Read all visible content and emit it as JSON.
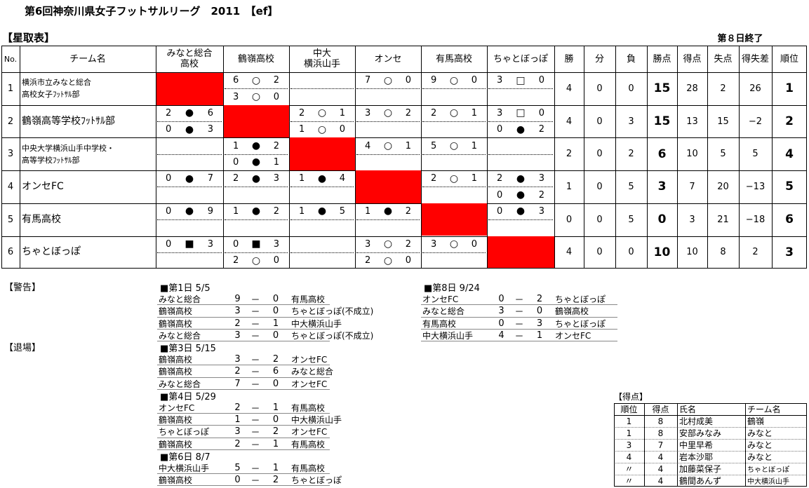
{
  "header": {
    "title": "第6回神奈川県女子フットサルリーグ　2011　【ef】",
    "section": "【星取表】",
    "status": "第８日終了"
  },
  "standings": {
    "columns": [
      "No.",
      "チーム名",
      "みなと総合\n高校",
      "鶴嶺高校",
      "中大\n横浜山手",
      "オンセ",
      "有馬高校",
      "ちゃとぼっぽ",
      "勝",
      "分",
      "負",
      "勝点",
      "得点",
      "失点",
      "得失差",
      "順位"
    ],
    "rows": [
      {
        "no": "1",
        "team": "横浜市立みなと総合\n高校女子ﾌｯﾄｻﾙ部",
        "results": [
          null,
          [
            [
              "6",
              "○",
              "2"
            ],
            [
              "3",
              "○",
              "0"
            ]
          ],
          [],
          [
            [
              "7",
              "○",
              "0"
            ]
          ],
          [
            [
              "9",
              "○",
              "0"
            ]
          ],
          [
            [
              "3",
              "□",
              "0"
            ]
          ]
        ],
        "w": "4",
        "d": "0",
        "l": "0",
        "points": "15",
        "gf": "28",
        "ga": "2",
        "gd": "26",
        "rank": "1"
      },
      {
        "no": "2",
        "team": "鶴嶺高等学校ﾌｯﾄｻﾙ部",
        "results": [
          [
            [
              "2",
              "●",
              "6"
            ],
            [
              "0",
              "●",
              "3"
            ]
          ],
          null,
          [
            [
              "2",
              "○",
              "1"
            ],
            [
              "1",
              "○",
              "0"
            ]
          ],
          [
            [
              "3",
              "○",
              "2"
            ]
          ],
          [
            [
              "2",
              "○",
              "1"
            ]
          ],
          [
            [
              "3",
              "□",
              "0"
            ],
            [
              "0",
              "●",
              "2"
            ]
          ]
        ],
        "w": "4",
        "d": "0",
        "l": "3",
        "points": "15",
        "gf": "13",
        "ga": "15",
        "gd": "−2",
        "rank": "2"
      },
      {
        "no": "3",
        "team": "中央大学横浜山手中学校・\n高等学校ﾌｯﾄｻﾙ部",
        "results": [
          [],
          [
            [
              "1",
              "●",
              "2"
            ],
            [
              "0",
              "●",
              "1"
            ]
          ],
          null,
          [
            [
              "4",
              "○",
              "1"
            ]
          ],
          [
            [
              "5",
              "○",
              "1"
            ]
          ],
          []
        ],
        "w": "2",
        "d": "0",
        "l": "2",
        "points": "6",
        "gf": "10",
        "ga": "5",
        "gd": "5",
        "rank": "4"
      },
      {
        "no": "4",
        "team": "オンセFC",
        "results": [
          [
            [
              "0",
              "●",
              "7"
            ]
          ],
          [
            [
              "2",
              "●",
              "3"
            ]
          ],
          [
            [
              "1",
              "●",
              "4"
            ]
          ],
          null,
          [
            [
              "2",
              "○",
              "1"
            ]
          ],
          [
            [
              "2",
              "●",
              "3"
            ],
            [
              "0",
              "●",
              "2"
            ]
          ]
        ],
        "w": "1",
        "d": "0",
        "l": "5",
        "points": "3",
        "gf": "7",
        "ga": "20",
        "gd": "−13",
        "rank": "5"
      },
      {
        "no": "5",
        "team": "有馬高校",
        "results": [
          [
            [
              "0",
              "●",
              "9"
            ]
          ],
          [
            [
              "1",
              "●",
              "2"
            ]
          ],
          [
            [
              "1",
              "●",
              "5"
            ]
          ],
          [
            [
              "1",
              "●",
              "2"
            ]
          ],
          null,
          [
            [
              "0",
              "●",
              "3"
            ]
          ]
        ],
        "w": "0",
        "d": "0",
        "l": "5",
        "points": "0",
        "gf": "3",
        "ga": "21",
        "gd": "−18",
        "rank": "6"
      },
      {
        "no": "6",
        "team": "ちゃとぼっぽ",
        "results": [
          [
            [
              "0",
              "■",
              "3"
            ]
          ],
          [
            [
              "0",
              "■",
              "3"
            ],
            [
              "2",
              "○",
              "0"
            ]
          ],
          [],
          [
            [
              "3",
              "○",
              "2"
            ],
            [
              "2",
              "○",
              "0"
            ]
          ],
          [
            [
              "3",
              "○",
              "0"
            ]
          ],
          null
        ],
        "w": "4",
        "d": "0",
        "l": "0",
        "points": "10",
        "gf": "10",
        "ga": "8",
        "gd": "2",
        "rank": "3"
      }
    ]
  },
  "notes": {
    "warning": "【警告】",
    "ejection": "【退場】"
  },
  "schedule": [
    {
      "heading": "■第1日 5/5",
      "matches": [
        [
          "みなと総合",
          "9",
          "－",
          "0",
          "有馬高校"
        ],
        [
          "鶴嶺高校",
          "3",
          "－",
          "0",
          "ちゃとぼっぽ(不成立)"
        ],
        [
          "鶴嶺高校",
          "2",
          "－",
          "1",
          "中大横浜山手"
        ],
        [
          "みなと総合",
          "3",
          "－",
          "0",
          "ちゃとぼっぽ(不成立)"
        ]
      ]
    },
    {
      "heading": "■第3日 5/15",
      "matches": [
        [
          "鶴嶺高校",
          "3",
          "－",
          "2",
          "オンセFC"
        ],
        [
          "鶴嶺高校",
          "2",
          "－",
          "6",
          "みなと総合"
        ],
        [
          "みなと総合",
          "7",
          "－",
          "0",
          "オンセFC"
        ]
      ]
    },
    {
      "heading": "■第4日 5/29",
      "matches": [
        [
          "オンセFC",
          "2",
          "－",
          "1",
          "有馬高校"
        ],
        [
          "鶴嶺高校",
          "1",
          "－",
          "0",
          "中大横浜山手"
        ],
        [
          "ちゃとぼっぽ",
          "3",
          "－",
          "2",
          "オンセFC"
        ],
        [
          "鶴嶺高校",
          "2",
          "－",
          "1",
          "有馬高校"
        ]
      ]
    },
    {
      "heading": "■第6日 8/7",
      "matches": [
        [
          "中大横浜山手",
          "5",
          "－",
          "1",
          "有馬高校"
        ],
        [
          "鶴嶺高校",
          "0",
          "－",
          "2",
          "ちゃとぼっぽ"
        ]
      ]
    },
    {
      "heading": "■第8日 9/24",
      "matches": [
        [
          "オンセFC",
          "0",
          "－",
          "2",
          "ちゃとぼっぽ"
        ],
        [
          "みなと総合",
          "3",
          "－",
          "0",
          "鶴嶺高校"
        ],
        [
          "有馬高校",
          "0",
          "－",
          "3",
          "ちゃとぼっぽ"
        ],
        [
          "中大横浜山手",
          "4",
          "－",
          "1",
          "オンセFC"
        ]
      ]
    }
  ],
  "scorers": {
    "title": "【得点】",
    "columns": [
      "順位",
      "得点",
      "氏名",
      "チーム名"
    ],
    "rows": [
      [
        "1",
        "8",
        "北村成美",
        "鶴嶺"
      ],
      [
        "1",
        "8",
        "安部みなみ",
        "みなと"
      ],
      [
        "3",
        "7",
        "中里早希",
        "みなと"
      ],
      [
        "4",
        "4",
        "岩本沙耶",
        "みなと"
      ],
      [
        "〃",
        "4",
        "加藤菜保子",
        "ちゃとぼっぽ"
      ],
      [
        "〃",
        "4",
        "鶴間あんず",
        "中大横浜山手"
      ]
    ]
  }
}
